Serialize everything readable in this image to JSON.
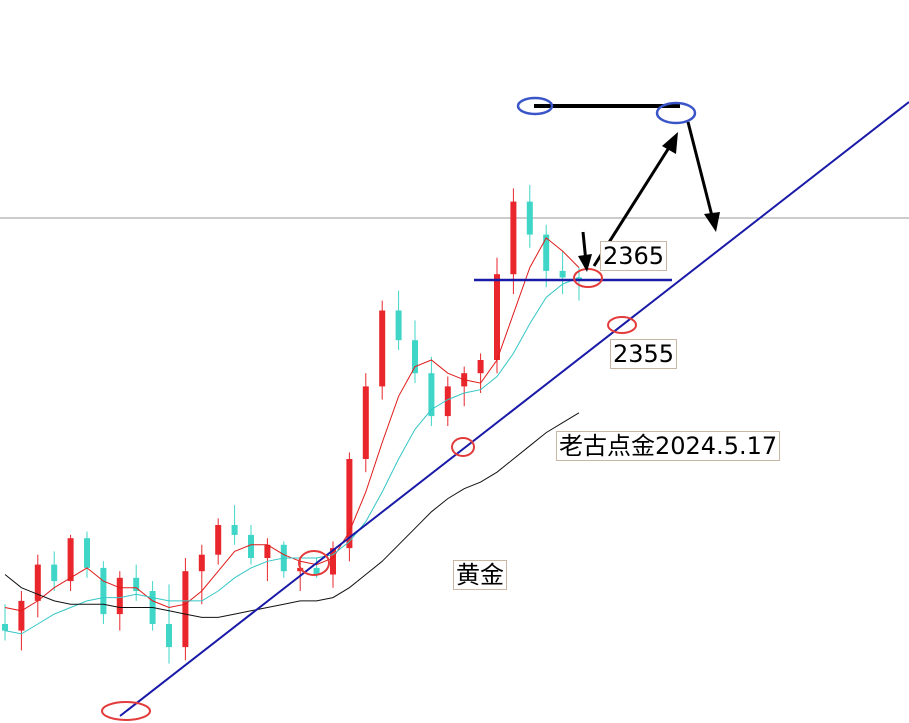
{
  "chart_data": {
    "type": "candlestick",
    "instrument_label": "黄金",
    "annotation_brand": "老古点金2024.5.17",
    "levels": {
      "upper_support": "2365",
      "lower_support": "2355"
    },
    "colors": {
      "up": "#e8262b",
      "down": "#3fd6c8",
      "ma_fast": "#e01b1b",
      "ma_mid": "#35c6c6",
      "ma_slow": "#111111",
      "trendline": "#1a1aa8",
      "circle_red": "#e33b3b",
      "circle_blue": "#3a55c8",
      "hline": "#888888"
    },
    "candles": [
      {
        "o": 2320,
        "h": 2326,
        "l": 2315,
        "c": 2318
      },
      {
        "o": 2318,
        "h": 2330,
        "l": 2312,
        "c": 2327
      },
      {
        "o": 2327,
        "h": 2341,
        "l": 2322,
        "c": 2338
      },
      {
        "o": 2338,
        "h": 2342,
        "l": 2330,
        "c": 2333
      },
      {
        "o": 2333,
        "h": 2347,
        "l": 2330,
        "c": 2346
      },
      {
        "o": 2346,
        "h": 2348,
        "l": 2334,
        "c": 2337
      },
      {
        "o": 2337,
        "h": 2339,
        "l": 2320,
        "c": 2323
      },
      {
        "o": 2323,
        "h": 2336,
        "l": 2318,
        "c": 2334
      },
      {
        "o": 2334,
        "h": 2338,
        "l": 2327,
        "c": 2330
      },
      {
        "o": 2330,
        "h": 2333,
        "l": 2318,
        "c": 2320
      },
      {
        "o": 2320,
        "h": 2332,
        "l": 2308,
        "c": 2313
      },
      {
        "o": 2313,
        "h": 2340,
        "l": 2309,
        "c": 2336
      },
      {
        "o": 2336,
        "h": 2344,
        "l": 2326,
        "c": 2341
      },
      {
        "o": 2341,
        "h": 2352,
        "l": 2338,
        "c": 2350
      },
      {
        "o": 2350,
        "h": 2356,
        "l": 2344,
        "c": 2347
      },
      {
        "o": 2347,
        "h": 2350,
        "l": 2338,
        "c": 2340
      },
      {
        "o": 2340,
        "h": 2346,
        "l": 2333,
        "c": 2344
      },
      {
        "o": 2344,
        "h": 2345,
        "l": 2334,
        "c": 2336
      },
      {
        "o": 2336,
        "h": 2340,
        "l": 2330,
        "c": 2337
      },
      {
        "o": 2337,
        "h": 2340,
        "l": 2334,
        "c": 2335
      },
      {
        "o": 2335,
        "h": 2345,
        "l": 2331,
        "c": 2343
      },
      {
        "o": 2343,
        "h": 2372,
        "l": 2339,
        "c": 2370
      },
      {
        "o": 2370,
        "h": 2396,
        "l": 2366,
        "c": 2392
      },
      {
        "o": 2392,
        "h": 2418,
        "l": 2388,
        "c": 2415
      },
      {
        "o": 2415,
        "h": 2421,
        "l": 2403,
        "c": 2406
      },
      {
        "o": 2406,
        "h": 2412,
        "l": 2393,
        "c": 2396
      },
      {
        "o": 2396,
        "h": 2401,
        "l": 2380,
        "c": 2383
      },
      {
        "o": 2383,
        "h": 2395,
        "l": 2380,
        "c": 2392
      },
      {
        "o": 2392,
        "h": 2398,
        "l": 2386,
        "c": 2396
      },
      {
        "o": 2396,
        "h": 2402,
        "l": 2390,
        "c": 2400
      },
      {
        "o": 2400,
        "h": 2431,
        "l": 2396,
        "c": 2426
      },
      {
        "o": 2426,
        "h": 2452,
        "l": 2420,
        "c": 2448
      },
      {
        "o": 2448,
        "h": 2453,
        "l": 2434,
        "c": 2438
      },
      {
        "o": 2438,
        "h": 2441,
        "l": 2422,
        "c": 2427
      },
      {
        "o": 2427,
        "h": 2433,
        "l": 2420,
        "c": 2425
      },
      {
        "o": 2425,
        "h": 2428,
        "l": 2418,
        "c": 2424
      }
    ],
    "ma_fast": [
      2325,
      2324,
      2327,
      2331,
      2334,
      2337,
      2333,
      2331,
      2331,
      2327,
      2325,
      2326,
      2330,
      2336,
      2342,
      2344,
      2344,
      2341,
      2339,
      2338,
      2340,
      2348,
      2360,
      2375,
      2389,
      2398,
      2400,
      2396,
      2394,
      2393,
      2400,
      2414,
      2428,
      2437,
      2433,
      2428
    ],
    "ma_mid": [
      2318,
      2317,
      2320,
      2323,
      2325,
      2327,
      2328,
      2328,
      2329,
      2328,
      2327,
      2327,
      2327,
      2330,
      2334,
      2337,
      2339,
      2340,
      2340,
      2340,
      2341,
      2345,
      2351,
      2360,
      2370,
      2379,
      2385,
      2388,
      2390,
      2391,
      2395,
      2402,
      2411,
      2419,
      2423,
      2425
    ],
    "ma_slow": [
      2335,
      2331,
      2329,
      2327,
      2326,
      2326,
      2326,
      2325,
      2325,
      2325,
      2324,
      2323,
      2322,
      2322,
      2323,
      2324,
      2325,
      2326,
      2327,
      2327,
      2328,
      2331,
      2335,
      2339,
      2344,
      2349,
      2354,
      2358,
      2361,
      2363,
      2366,
      2370,
      2374,
      2378,
      2381,
      2384
    ]
  }
}
